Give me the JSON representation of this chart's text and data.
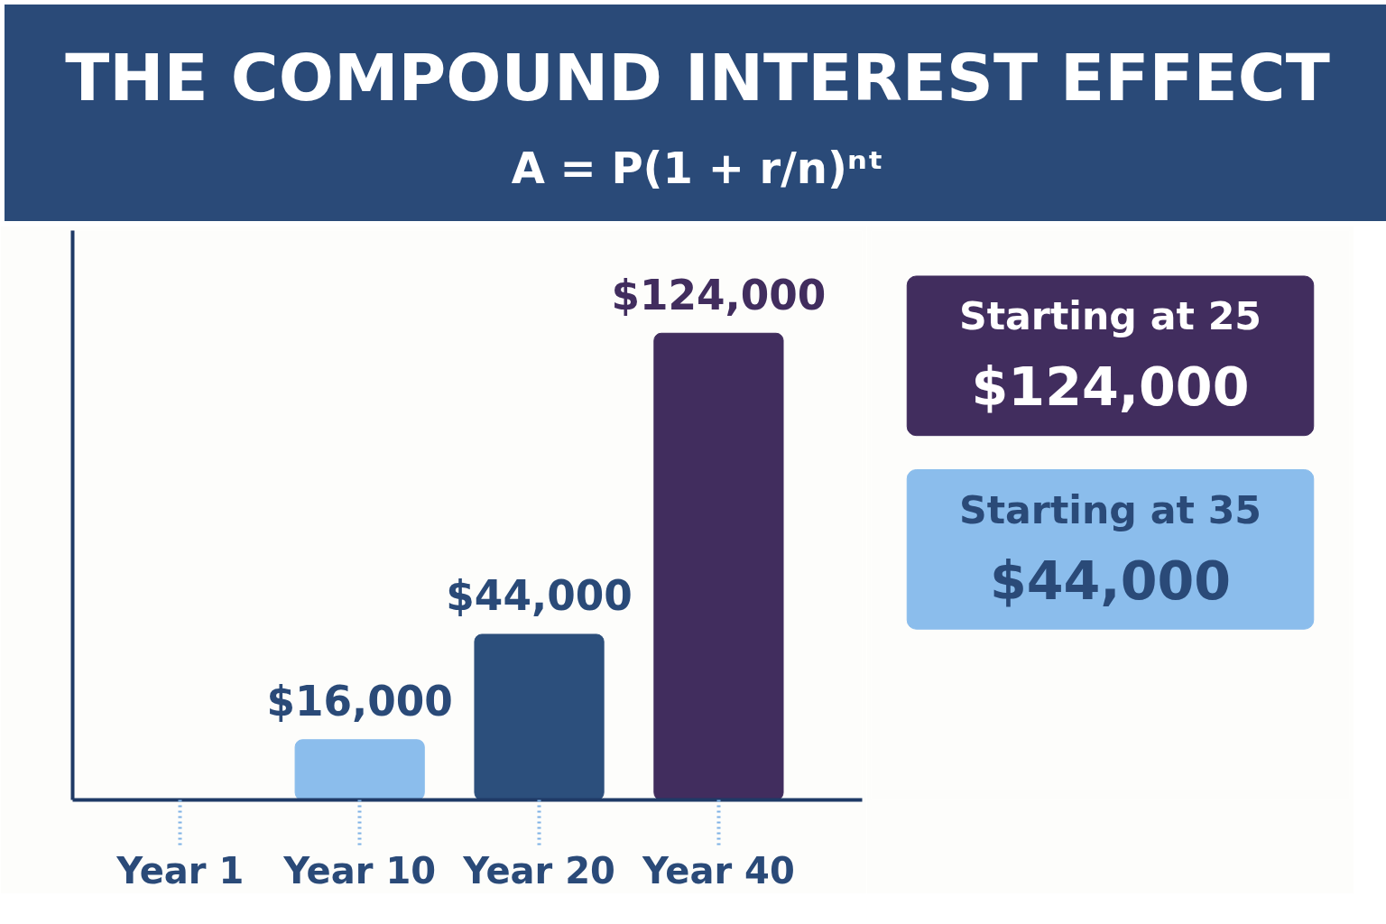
{
  "chart_data": {
    "type": "bar",
    "title": "THE COMPOUND INTEREST EFFECT",
    "subtitle": "A = P(1 + r/n)ⁿᵗ",
    "categories": [
      "Year 1",
      "Year 10",
      "Year 20",
      "Year 40"
    ],
    "values": [
      null,
      16000,
      44000,
      124000
    ],
    "colors": [
      "#8bbdec",
      "#8bbdec",
      "#2c4f7c",
      "#412d5e"
    ],
    "value_labels": [
      null,
      "$16,000",
      "$44,000",
      "$124,000"
    ],
    "annotations": [
      "Starting at 25",
      "$124,000",
      "Starting at 35",
      "$44,000"
    ],
    "grid": false
  }
}
